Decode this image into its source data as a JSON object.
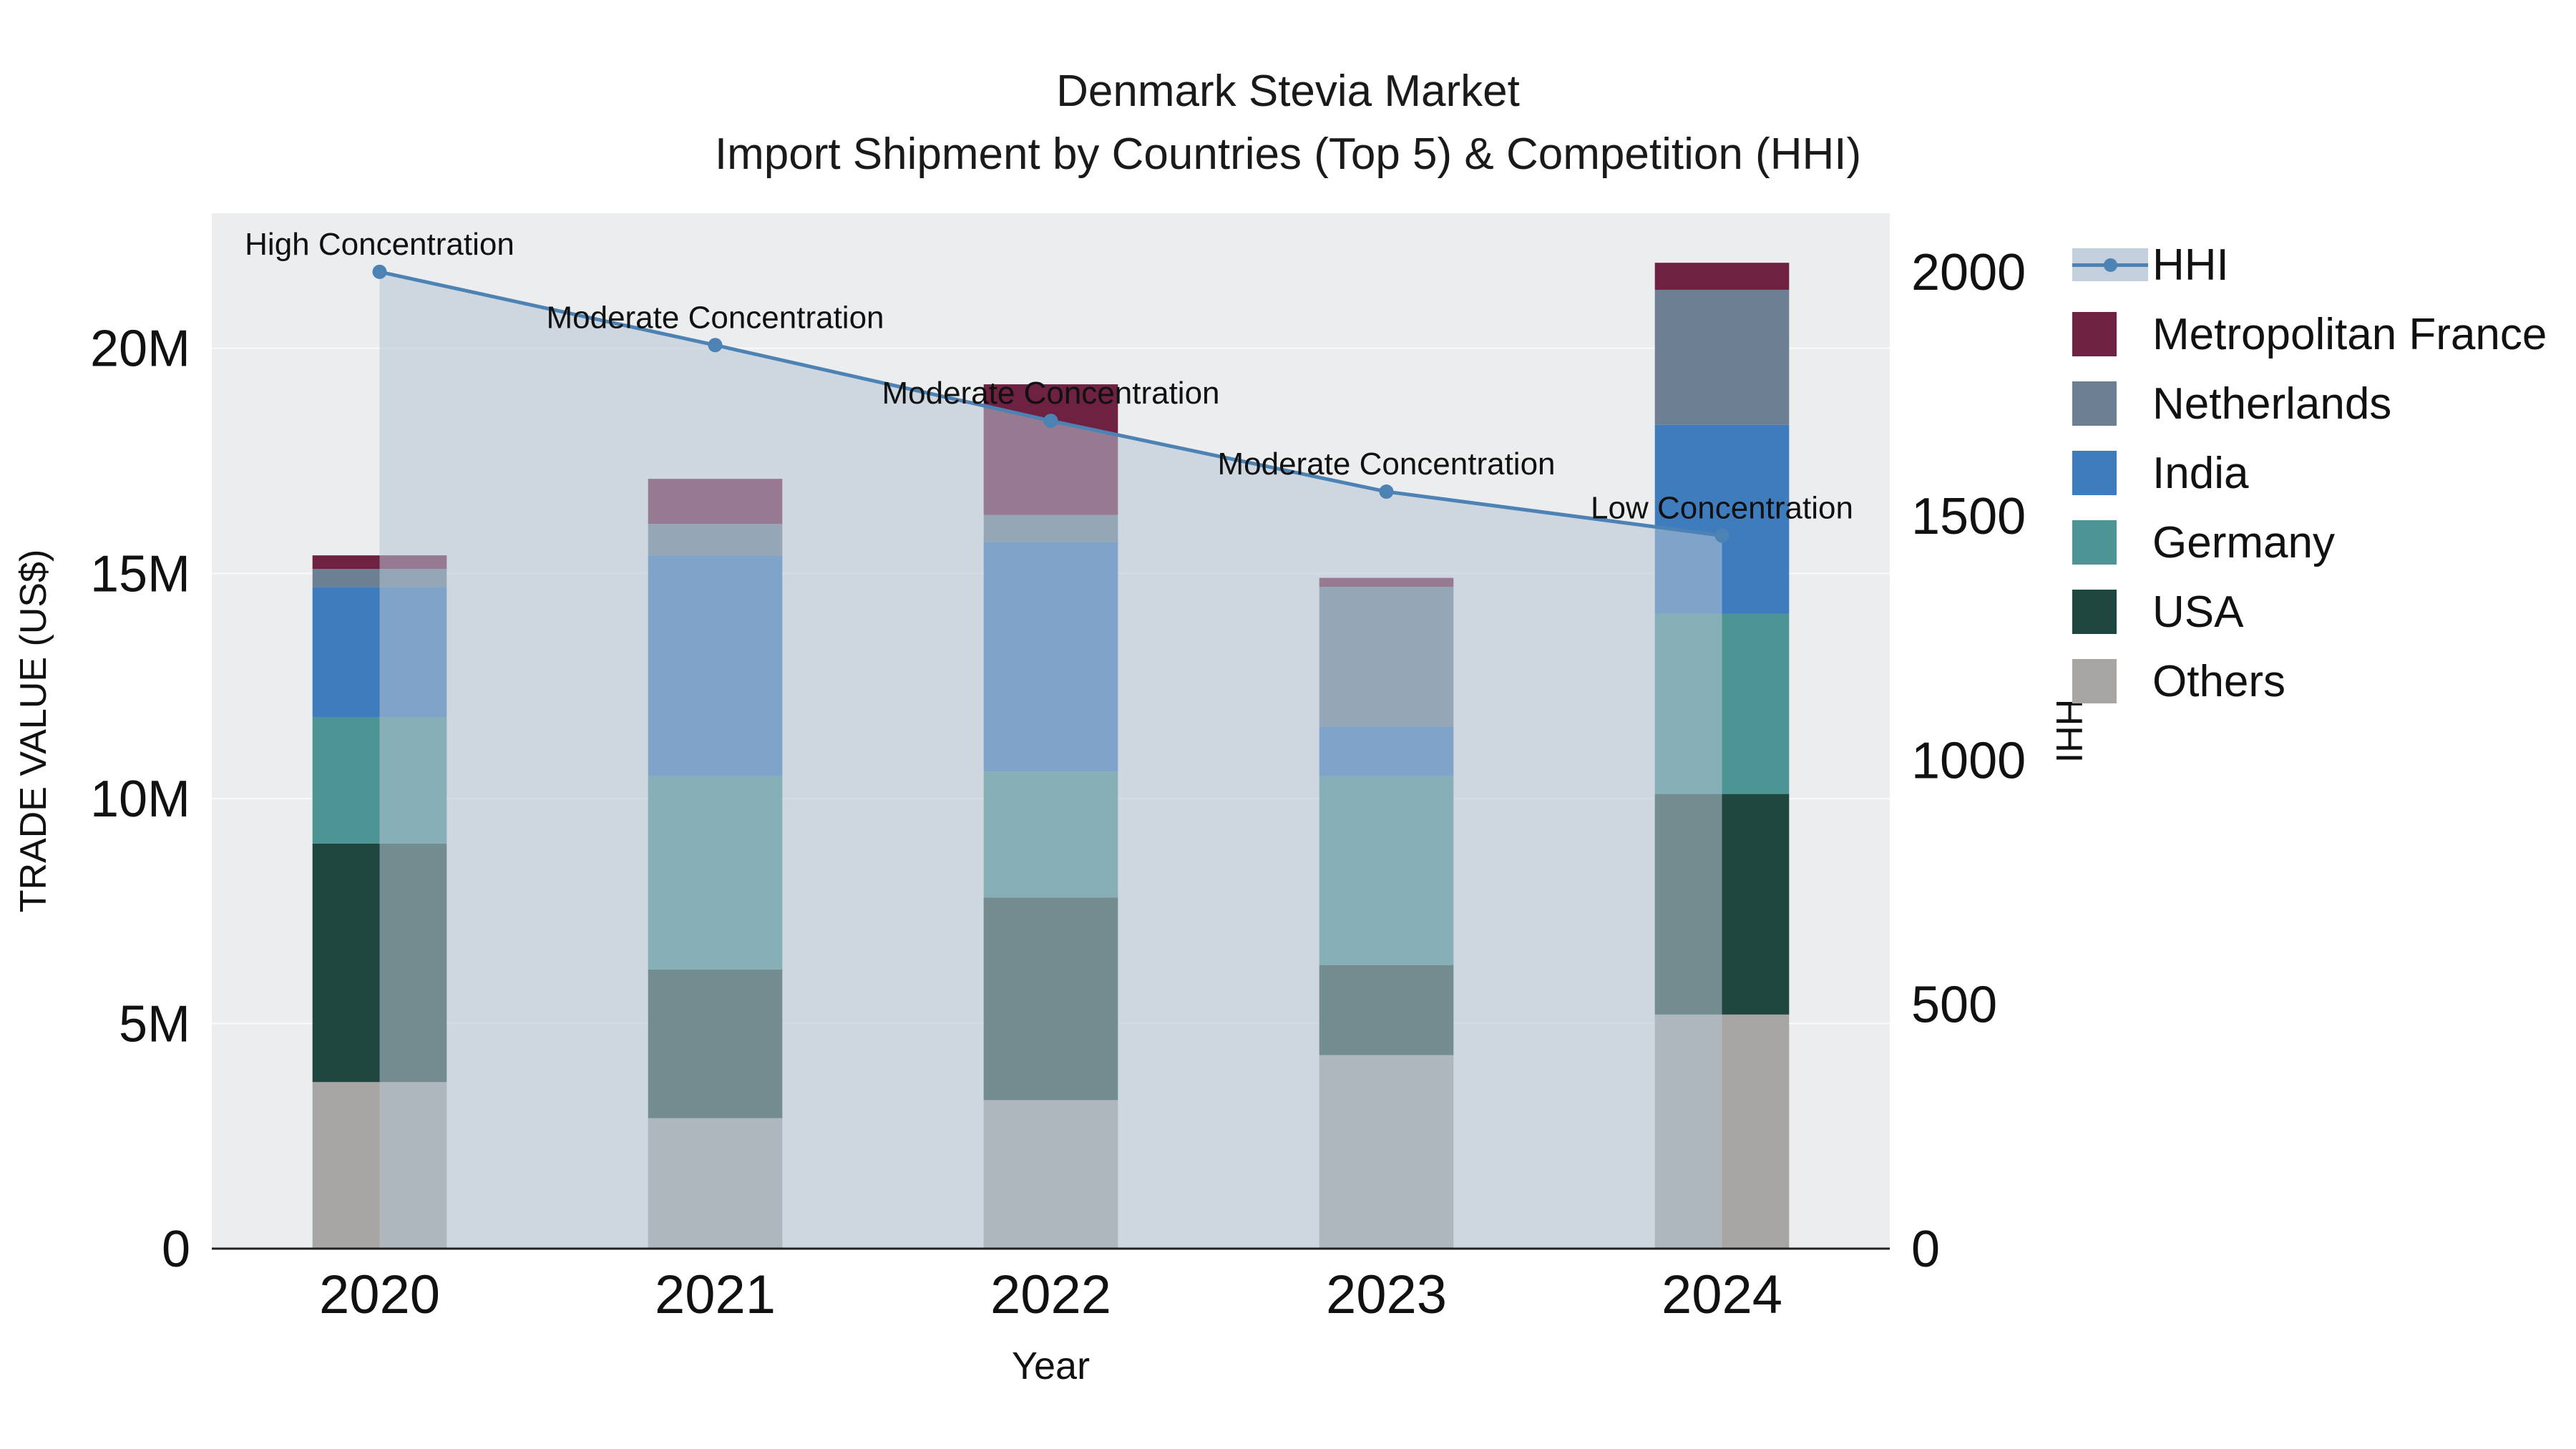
{
  "chart_data": {
    "type": "bar",
    "variant": "stacked-bars-with-secondary-axis-line-and-area",
    "title": "Denmark Stevia Market",
    "subtitle": "Import Shipment by Countries (Top 5) & Competition (HHI)",
    "xlabel": "Year",
    "ylabel_left": "TRADE VALUE (US$)",
    "ylabel_right": "HHI",
    "categories": [
      "2020",
      "2021",
      "2022",
      "2023",
      "2024"
    ],
    "ylim_left_millions": [
      0,
      23
    ],
    "yticks_left": [
      {
        "v": 0,
        "label": "0"
      },
      {
        "v": 5,
        "label": "5M"
      },
      {
        "v": 10,
        "label": "10M"
      },
      {
        "v": 15,
        "label": "15M"
      },
      {
        "v": 20,
        "label": "20M"
      }
    ],
    "ylim_right": [
      0,
      2120
    ],
    "yticks_right": [
      {
        "v": 0,
        "label": "0"
      },
      {
        "v": 500,
        "label": "500"
      },
      {
        "v": 1000,
        "label": "1000"
      },
      {
        "v": 1500,
        "label": "1500"
      },
      {
        "v": 2000,
        "label": "2000"
      }
    ],
    "stack_order_bottom_to_top": [
      "Others",
      "USA",
      "Germany",
      "India",
      "Netherlands",
      "Metropolitan France"
    ],
    "series": [
      {
        "name": "Others",
        "color": "#a7a6a5",
        "values_millions": [
          3.7,
          2.9,
          3.3,
          4.3,
          5.2
        ]
      },
      {
        "name": "USA",
        "color": "#20473f",
        "values_millions": [
          5.3,
          3.3,
          4.5,
          2.0,
          4.9
        ]
      },
      {
        "name": "Germany",
        "color": "#4d9494",
        "values_millions": [
          2.8,
          4.3,
          2.8,
          4.2,
          4.0
        ]
      },
      {
        "name": "India",
        "color": "#3f7cbd",
        "values_millions": [
          2.9,
          4.9,
          5.1,
          1.1,
          4.2
        ]
      },
      {
        "name": "Netherlands",
        "color": "#6d8093",
        "values_millions": [
          0.4,
          0.7,
          0.6,
          3.1,
          3.0
        ]
      },
      {
        "name": "Metropolitan France",
        "color": "#6e2140",
        "values_millions": [
          0.3,
          1.0,
          2.9,
          0.2,
          0.6
        ]
      }
    ],
    "line": {
      "name": "HHI",
      "color": "#4c82b4",
      "area_fill": "rgba(183,196,211,0.55)",
      "values": [
        2000,
        1850,
        1695,
        1550,
        1460
      ],
      "annotations": [
        "High Concentration",
        "Moderate Concentration",
        "Moderate Concentration",
        "Moderate Concentration",
        "Low Concentration"
      ]
    },
    "legend": [
      "HHI",
      "Metropolitan France",
      "Netherlands",
      "India",
      "Germany",
      "USA",
      "Others"
    ],
    "plot_background": "#ebedee",
    "grid_color": "#f9fafb",
    "axis_line_color": "#222222",
    "text_color": "#111111"
  }
}
